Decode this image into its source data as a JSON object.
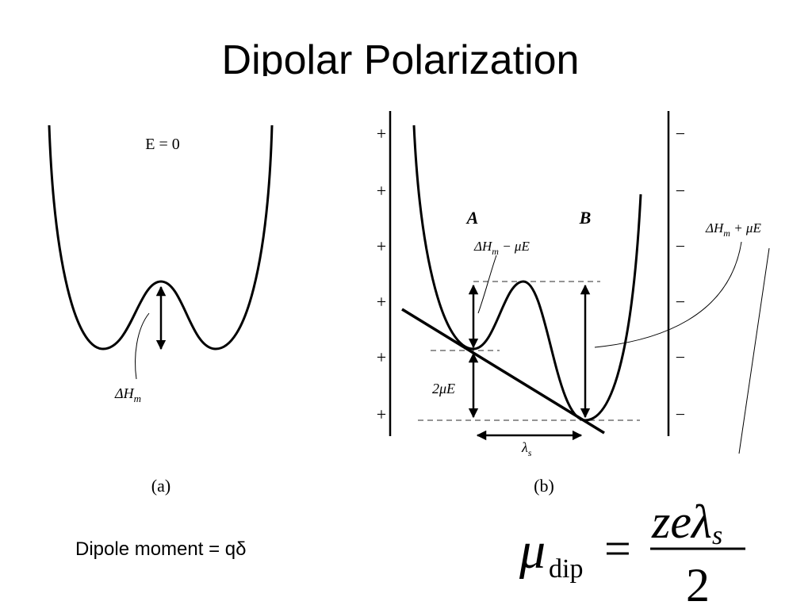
{
  "title": "Dipolar Polarization",
  "panel_a": {
    "field_label": "E = 0",
    "barrier_label": {
      "base": "ΔH",
      "sub": "m"
    },
    "caption": "(a)"
  },
  "panel_b": {
    "well_a": "A",
    "well_b": "B",
    "label_minus": {
      "base": "ΔH",
      "sub": "m",
      "rest": " − μE"
    },
    "label_plus": {
      "base": "ΔH",
      "sub": "m",
      "rest": " + μE"
    },
    "split_label": "2μE",
    "distance_label": {
      "base": "λ",
      "sub": "s"
    },
    "left_plate_signs": [
      "+",
      "+",
      "+",
      "+",
      "+",
      "+"
    ],
    "right_plate_signs": [
      "−",
      "−",
      "−",
      "−",
      "−",
      "−"
    ],
    "caption": "(b)"
  },
  "dipole_moment": "Dipole moment = qδ",
  "formula": {
    "symbol": "μ",
    "subscript": "dip",
    "equals": "=",
    "numerator": "zeλ",
    "numerator_sub": "s",
    "denominator": "2"
  }
}
